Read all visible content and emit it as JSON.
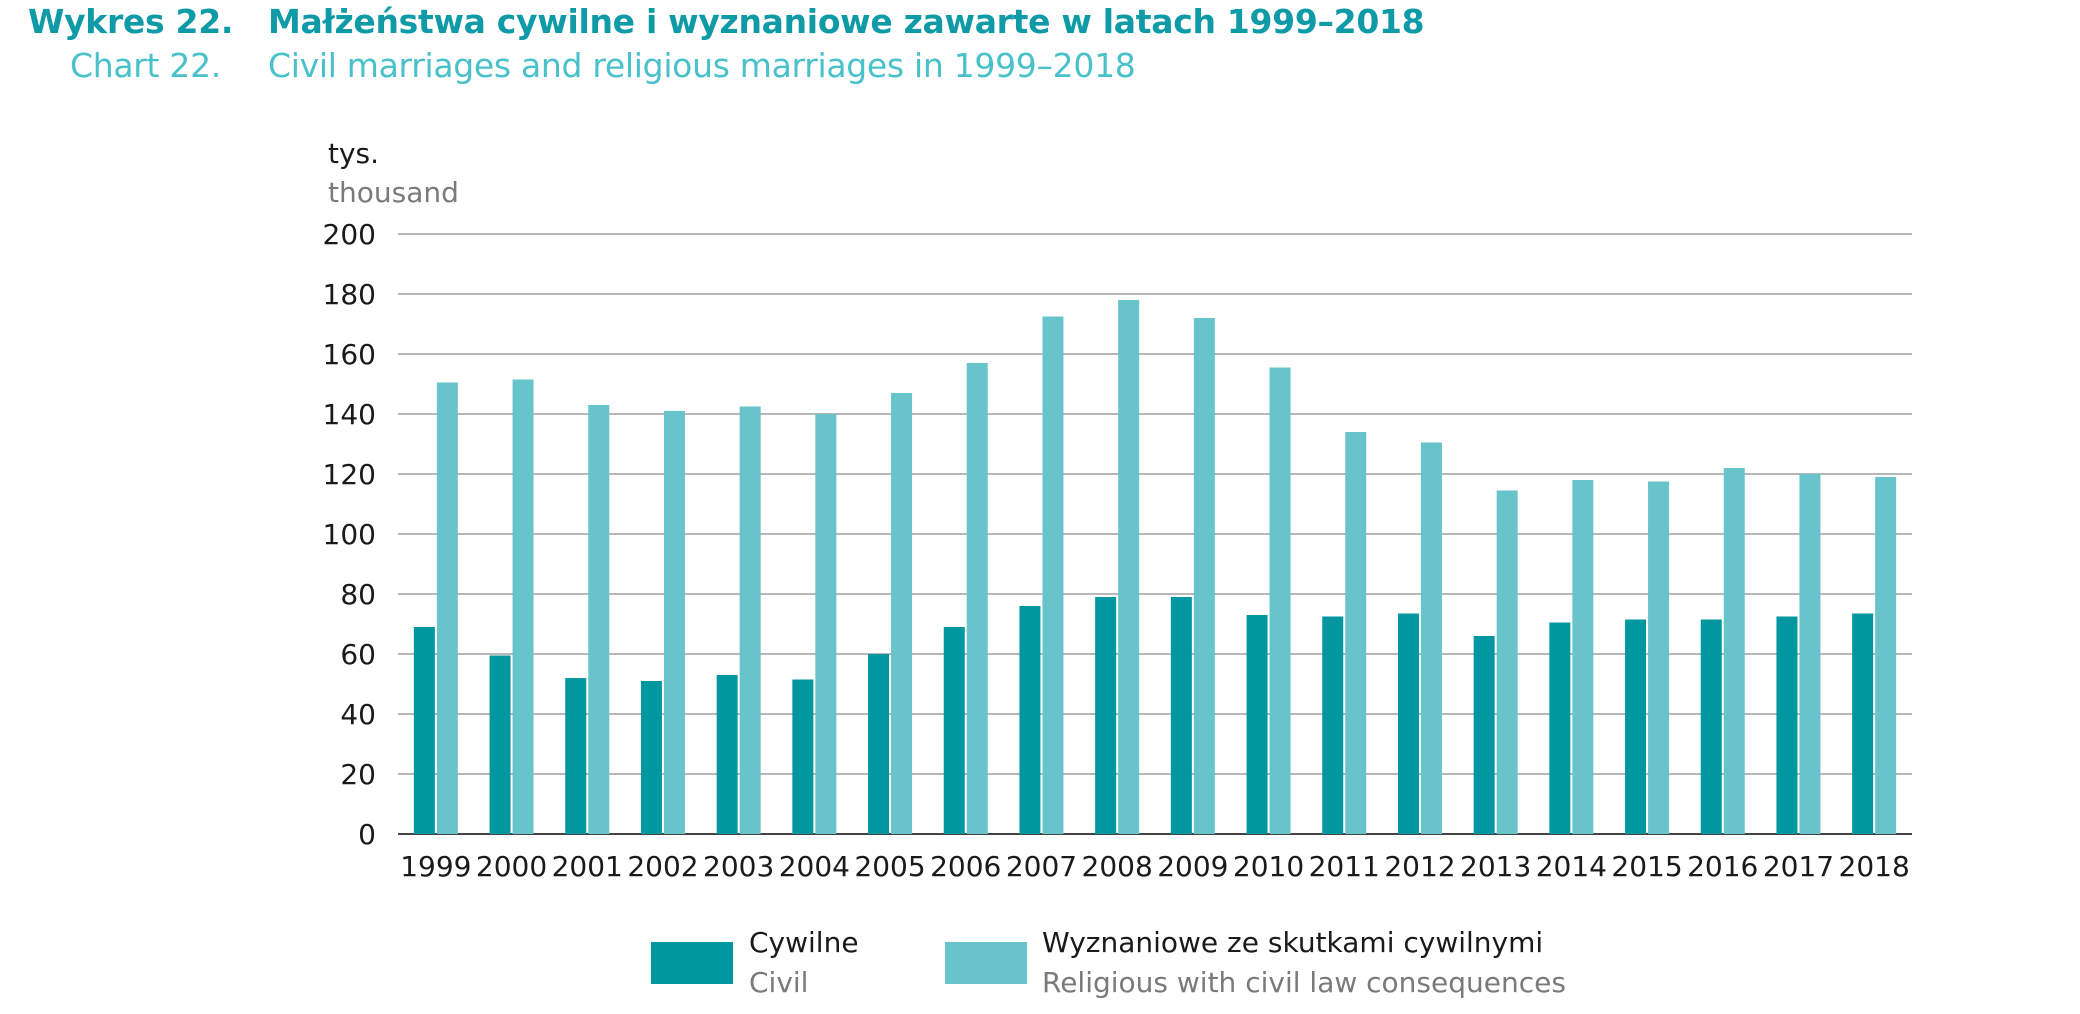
{
  "header": {
    "label_pl": "Wykres 22.",
    "title_pl": "Małżeństwa cywilne i wyznaniowe zawarte w latach 1999–2018",
    "label_en": "Chart 22.",
    "title_en": "Civil marriages and religious marriages in 1999–2018"
  },
  "colors": {
    "civil": "#0097a0",
    "religious": "#66c4ca",
    "grid": "#8c8c8c",
    "axis_text": "#1a1a1a"
  },
  "chart_data": {
    "type": "bar",
    "unit_pl": "tys.",
    "unit_en": "thousand",
    "ylim": [
      0,
      200
    ],
    "yticks": [
      0,
      20,
      40,
      60,
      80,
      100,
      120,
      140,
      160,
      180,
      200
    ],
    "grid": true,
    "legend_position": "bottom",
    "categories": [
      "1999",
      "2000",
      "2001",
      "2002",
      "2003",
      "2004",
      "2005",
      "2006",
      "2007",
      "2008",
      "2009",
      "2010",
      "2011",
      "2012",
      "2013",
      "2014",
      "2015",
      "2016",
      "2017",
      "2018"
    ],
    "series": [
      {
        "name_pl": "Cywilne",
        "name_en": "Civil",
        "color_key": "civil",
        "values": [
          69,
          59.5,
          52,
          51,
          53,
          51.5,
          60,
          69,
          76,
          79,
          79,
          73,
          72.5,
          73.5,
          66,
          70.5,
          71.5,
          71.5,
          72.5,
          73.5
        ]
      },
      {
        "name_pl": "Wyznaniowe ze skutkami cywilnymi",
        "name_en": "Religious with civil law consequences",
        "color_key": "religious",
        "values": [
          150.5,
          151.5,
          143,
          141,
          142.5,
          140,
          147,
          157,
          172.5,
          178,
          172,
          155.5,
          134,
          130.5,
          114.5,
          118,
          117.5,
          122,
          120,
          119
        ]
      }
    ]
  }
}
